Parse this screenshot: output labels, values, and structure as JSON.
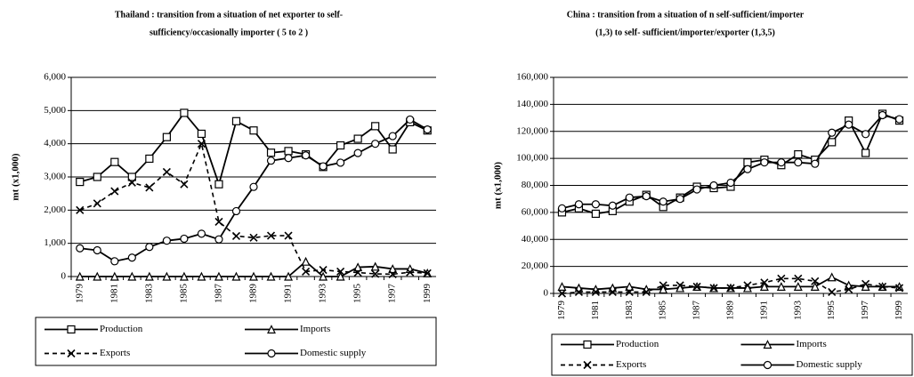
{
  "chart_data": [
    {
      "type": "line",
      "title": [
        "Thailand : transition from a situation of net exporter to self-",
        "sufficiency/occasionally importer (  5 to 2 )"
      ],
      "y_label": "mt (x1,000)",
      "categories": [
        "1979",
        null,
        "1981",
        null,
        "1983",
        null,
        "1985",
        null,
        "1987",
        null,
        "1989",
        null,
        "1991",
        null,
        "1993",
        null,
        "1995",
        null,
        "1997",
        null,
        "1999"
      ],
      "ylim": [
        0,
        6000
      ],
      "yticks": [
        0,
        {
          "value": 1000,
          "label": "1,000"
        },
        {
          "value": 2000,
          "label": "2,000"
        },
        {
          "value": 3000,
          "label": "3,000"
        },
        {
          "value": 4000,
          "label": "4,000"
        },
        {
          "value": 5000,
          "label": "5,000"
        },
        {
          "value": 6000,
          "label": "6,000"
        }
      ],
      "grid": true,
      "series": [
        {
          "name": "Production",
          "color": "#000000",
          "marker": "square",
          "line_style": "solid",
          "values": [
            2850,
            3000,
            3450,
            3000,
            3550,
            4200,
            4930,
            4300,
            2780,
            4680,
            4400,
            3730,
            3780,
            3680,
            3300,
            3950,
            4150,
            4530,
            3830,
            4650,
            4400
          ]
        },
        {
          "name": "Imports",
          "color": "#000000",
          "marker": "triangle",
          "line_style": "solid",
          "values": [
            0,
            0,
            0,
            0,
            0,
            0,
            0,
            0,
            0,
            0,
            0,
            0,
            0,
            450,
            0,
            0,
            280,
            300,
            230,
            230,
            100
          ]
        },
        {
          "name": "Exports",
          "color": "#000000",
          "marker": "x",
          "line_style": "dashed",
          "values": [
            2000,
            2200,
            2570,
            2830,
            2680,
            3150,
            2780,
            4000,
            1650,
            1220,
            1170,
            1230,
            1230,
            150,
            200,
            150,
            120,
            80,
            70,
            130,
            100
          ]
        },
        {
          "name": "Domestic supply",
          "color": "#000000",
          "marker": "circle",
          "line_style": "solid",
          "values": [
            850,
            790,
            460,
            570,
            890,
            1080,
            1140,
            1290,
            1120,
            1970,
            2700,
            3490,
            3570,
            3650,
            3320,
            3430,
            3720,
            4000,
            4230,
            4730,
            4430
          ]
        }
      ]
    },
    {
      "type": "line",
      "title": [
        "China : transition from a situation of n self-sufficient/importer",
        "(1,3) to self- sufficient/importer/exporter (1,3,5)"
      ],
      "y_label": "mt (x1,000)",
      "categories": [
        "1979",
        null,
        "1981",
        null,
        "1983",
        null,
        "1985",
        null,
        "1987",
        null,
        "1989",
        null,
        "1991",
        null,
        "1993",
        null,
        "1995",
        null,
        "1997",
        null,
        "1999"
      ],
      "ylim": [
        0,
        160000
      ],
      "yticks": [
        0,
        {
          "value": 20000,
          "label": "20,000"
        },
        {
          "value": 40000,
          "label": "40,000"
        },
        {
          "value": 60000,
          "label": "60,000"
        },
        {
          "value": 80000,
          "label": "80,000"
        },
        {
          "value": 100000,
          "label": "100,000"
        },
        {
          "value": 120000,
          "label": "120,000"
        },
        {
          "value": 140000,
          "label": "140,000"
        },
        {
          "value": 160000,
          "label": "160,000"
        }
      ],
      "grid": true,
      "series": [
        {
          "name": "Production",
          "color": "#000000",
          "marker": "square",
          "line_style": "solid",
          "values": [
            60000,
            63000,
            59000,
            61000,
            68000,
            73000,
            64000,
            71000,
            79000,
            78000,
            79000,
            97000,
            99000,
            95000,
            103000,
            99000,
            112000,
            128000,
            104000,
            133000,
            128000
          ]
        },
        {
          "name": "Imports",
          "color": "#000000",
          "marker": "triangle",
          "line_style": "solid",
          "values": [
            5000,
            4000,
            3000,
            4000,
            5000,
            3000,
            3000,
            4000,
            5000,
            4000,
            4000,
            4000,
            5000,
            5000,
            5000,
            5000,
            12000,
            6000,
            5000,
            5000,
            5000
          ]
        },
        {
          "name": "Exports",
          "color": "#000000",
          "marker": "x",
          "line_style": "dashed",
          "values": [
            0,
            1000,
            1000,
            1000,
            1000,
            1000,
            6000,
            6000,
            5000,
            4000,
            4000,
            6000,
            8000,
            11000,
            11000,
            9000,
            1000,
            3000,
            7000,
            5000,
            4000
          ]
        },
        {
          "name": "Domestic supply",
          "color": "#000000",
          "marker": "circle",
          "line_style": "solid",
          "values": [
            63000,
            66000,
            66000,
            65000,
            71000,
            72000,
            68000,
            70000,
            77000,
            80000,
            82000,
            92000,
            97000,
            97000,
            97000,
            96000,
            119000,
            125000,
            118000,
            132000,
            129000
          ]
        }
      ]
    }
  ]
}
